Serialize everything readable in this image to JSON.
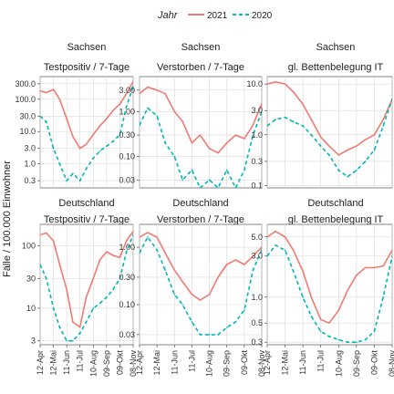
{
  "legend": {
    "title": "Jahr",
    "position": "top",
    "entries": [
      {
        "label": "2021",
        "color": "#f07a72",
        "dash": "solid"
      },
      {
        "label": "2020",
        "color": "#00b6b8",
        "dash": "dashed"
      }
    ]
  },
  "y_axis_label": "Fälle / 100.000 Einwohner",
  "x_tick_labels": [
    "12-Apr",
    "12-Mai",
    "11-Jun",
    "11-Jul",
    "10-Aug",
    "09-Sep",
    "09-Okt",
    "08-Nov"
  ],
  "chart_data": [
    {
      "type": "line",
      "scale": "log",
      "grid": true,
      "strip": [
        "Sachsen",
        "Testpositiv / 7-Tage"
      ],
      "ylim": [
        0.18,
        500
      ],
      "yticks": [
        {
          "v": 0.3,
          "label": "0.3"
        },
        {
          "v": 1,
          "label": "1.0"
        },
        {
          "v": 3,
          "label": "3.0"
        },
        {
          "v": 10,
          "label": "10.0"
        },
        {
          "v": 30,
          "label": "30.0"
        },
        {
          "v": 100,
          "label": "100.0"
        },
        {
          "v": 300,
          "label": "300.0"
        }
      ],
      "x": [
        "2021-04-12",
        "2021-04-26",
        "2021-05-12",
        "2021-05-26",
        "2021-06-11",
        "2021-06-25",
        "2021-07-11",
        "2021-07-25",
        "2021-08-10",
        "2021-08-25",
        "2021-09-09",
        "2021-09-24",
        "2021-10-09",
        "2021-10-24",
        "2021-11-08"
      ],
      "series": [
        {
          "name": "2021",
          "values": [
            180,
            160,
            200,
            100,
            25,
            7,
            3,
            4,
            8,
            15,
            25,
            45,
            70,
            150,
            350
          ]
        },
        {
          "name": "2020",
          "values": [
            30,
            20,
            3,
            1,
            0.3,
            0.5,
            0.3,
            0.7,
            1.5,
            2.5,
            3.5,
            5,
            8,
            60,
            250
          ]
        }
      ]
    },
    {
      "type": "line",
      "scale": "log",
      "grid": true,
      "strip": [
        "Sachsen",
        "Verstorben / 7-Tage"
      ],
      "ylim": [
        0.02,
        6
      ],
      "yticks": [
        {
          "v": 0.03,
          "label": "0.03"
        },
        {
          "v": 0.1,
          "label": "0.10"
        },
        {
          "v": 0.3,
          "label": "0.30"
        },
        {
          "v": 1,
          "label": "1.00"
        },
        {
          "v": 3,
          "label": "3.00"
        }
      ],
      "x": [
        "2021-04-12",
        "2021-04-26",
        "2021-05-12",
        "2021-05-26",
        "2021-06-11",
        "2021-06-25",
        "2021-07-11",
        "2021-07-25",
        "2021-08-10",
        "2021-08-25",
        "2021-09-09",
        "2021-09-24",
        "2021-10-09",
        "2021-10-24",
        "2021-11-08"
      ],
      "series": [
        {
          "name": "2021",
          "values": [
            2.5,
            3.5,
            3.0,
            2.5,
            1.0,
            0.6,
            0.2,
            0.3,
            0.15,
            0.12,
            0.2,
            0.3,
            0.25,
            0.5,
            1.5
          ]
        },
        {
          "name": "2020",
          "values": [
            0.5,
            1.2,
            0.8,
            0.2,
            0.1,
            0.03,
            0.05,
            0.02,
            0.03,
            0.02,
            0.05,
            0.02,
            0.05,
            0.3,
            1.0
          ]
        }
      ]
    },
    {
      "type": "line",
      "scale": "log",
      "grid": true,
      "strip": [
        "Sachsen",
        "gl. Bettenbelegung IT"
      ],
      "ylim": [
        0.09,
        14
      ],
      "yticks": [
        {
          "v": 0.1,
          "label": "0.1"
        },
        {
          "v": 0.3,
          "label": "0.3"
        },
        {
          "v": 1,
          "label": "1.0"
        },
        {
          "v": 3,
          "label": "3.0"
        },
        {
          "v": 10,
          "label": "10.0"
        }
      ],
      "x": [
        "2021-04-12",
        "2021-04-26",
        "2021-05-12",
        "2021-05-26",
        "2021-06-11",
        "2021-06-25",
        "2021-07-11",
        "2021-07-25",
        "2021-08-10",
        "2021-08-25",
        "2021-09-09",
        "2021-09-24",
        "2021-10-09",
        "2021-10-24",
        "2021-11-08"
      ],
      "series": [
        {
          "name": "2021",
          "values": [
            10,
            11,
            10,
            7,
            4,
            2,
            0.9,
            0.6,
            0.4,
            0.5,
            0.6,
            0.8,
            1.0,
            2.0,
            5.0
          ]
        },
        {
          "name": "2020",
          "values": [
            1.5,
            2.0,
            2.2,
            1.8,
            1.5,
            1.0,
            0.6,
            0.4,
            0.2,
            0.15,
            0.2,
            0.3,
            0.5,
            1.5,
            5.0
          ]
        }
      ]
    },
    {
      "type": "line",
      "scale": "log",
      "grid": true,
      "strip": [
        "Deutschland",
        "Testpositiv / 7-Tage"
      ],
      "ylim": [
        2.6,
        220
      ],
      "yticks": [
        {
          "v": 3,
          "label": "3"
        },
        {
          "v": 10,
          "label": "10"
        },
        {
          "v": 30,
          "label": "30"
        },
        {
          "v": 100,
          "label": "100"
        }
      ],
      "x": [
        "2021-04-12",
        "2021-04-26",
        "2021-05-12",
        "2021-05-26",
        "2021-06-11",
        "2021-06-25",
        "2021-07-11",
        "2021-07-25",
        "2021-08-10",
        "2021-08-25",
        "2021-09-09",
        "2021-09-24",
        "2021-10-09",
        "2021-10-24",
        "2021-11-08"
      ],
      "series": [
        {
          "name": "2021",
          "values": [
            150,
            160,
            120,
            50,
            20,
            6,
            5,
            15,
            30,
            60,
            80,
            70,
            65,
            120,
            170
          ]
        },
        {
          "name": "2020",
          "values": [
            50,
            30,
            10,
            5,
            3,
            3,
            4,
            6,
            10,
            12,
            15,
            20,
            30,
            80,
            150
          ]
        }
      ]
    },
    {
      "type": "line",
      "scale": "log",
      "grid": true,
      "strip": [
        "Deutschland",
        "Verstorben / 7-Tage"
      ],
      "ylim": [
        0.02,
        2.5
      ],
      "yticks": [
        {
          "v": 0.03,
          "label": "0.03"
        },
        {
          "v": 0.1,
          "label": "0.10"
        },
        {
          "v": 0.3,
          "label": "0.30"
        },
        {
          "v": 1,
          "label": "1.00"
        }
      ],
      "x": [
        "2021-04-12",
        "2021-04-26",
        "2021-05-12",
        "2021-05-26",
        "2021-06-11",
        "2021-06-25",
        "2021-07-11",
        "2021-07-25",
        "2021-08-10",
        "2021-08-25",
        "2021-09-09",
        "2021-09-24",
        "2021-10-09",
        "2021-10-24",
        "2021-11-08"
      ],
      "series": [
        {
          "name": "2021",
          "values": [
            1.5,
            1.8,
            1.5,
            0.8,
            0.4,
            0.25,
            0.15,
            0.12,
            0.15,
            0.3,
            0.5,
            0.6,
            0.5,
            0.7,
            1.0
          ]
        },
        {
          "name": "2020",
          "values": [
            0.8,
            1.5,
            0.9,
            0.4,
            0.15,
            0.1,
            0.05,
            0.03,
            0.03,
            0.03,
            0.04,
            0.05,
            0.08,
            0.4,
            0.9
          ]
        }
      ]
    },
    {
      "type": "line",
      "scale": "log",
      "grid": true,
      "strip": [
        "Deutschland",
        "gl. Bettenbelegung IT"
      ],
      "ylim": [
        0.28,
        7
      ],
      "yticks": [
        {
          "v": 0.3,
          "label": "0.3"
        },
        {
          "v": 0.5,
          "label": "0.5"
        },
        {
          "v": 1,
          "label": "1.0"
        },
        {
          "v": 3,
          "label": "3.0"
        },
        {
          "v": 5,
          "label": "5.0"
        }
      ],
      "x": [
        "2021-04-12",
        "2021-04-26",
        "2021-05-12",
        "2021-05-26",
        "2021-06-11",
        "2021-06-25",
        "2021-07-11",
        "2021-07-25",
        "2021-08-10",
        "2021-08-25",
        "2021-09-09",
        "2021-09-24",
        "2021-10-09",
        "2021-10-24",
        "2021-11-08"
      ],
      "series": [
        {
          "name": "2021",
          "values": [
            5.0,
            5.8,
            5.0,
            3.5,
            2.0,
            1.0,
            0.55,
            0.5,
            0.7,
            1.2,
            1.8,
            2.2,
            2.2,
            2.3,
            3.5
          ]
        },
        {
          "name": "2020",
          "values": [
            3.0,
            4.0,
            3.5,
            2.0,
            1.0,
            0.6,
            0.4,
            0.35,
            0.32,
            0.3,
            0.3,
            0.32,
            0.4,
            1.0,
            3.0
          ]
        }
      ]
    }
  ]
}
